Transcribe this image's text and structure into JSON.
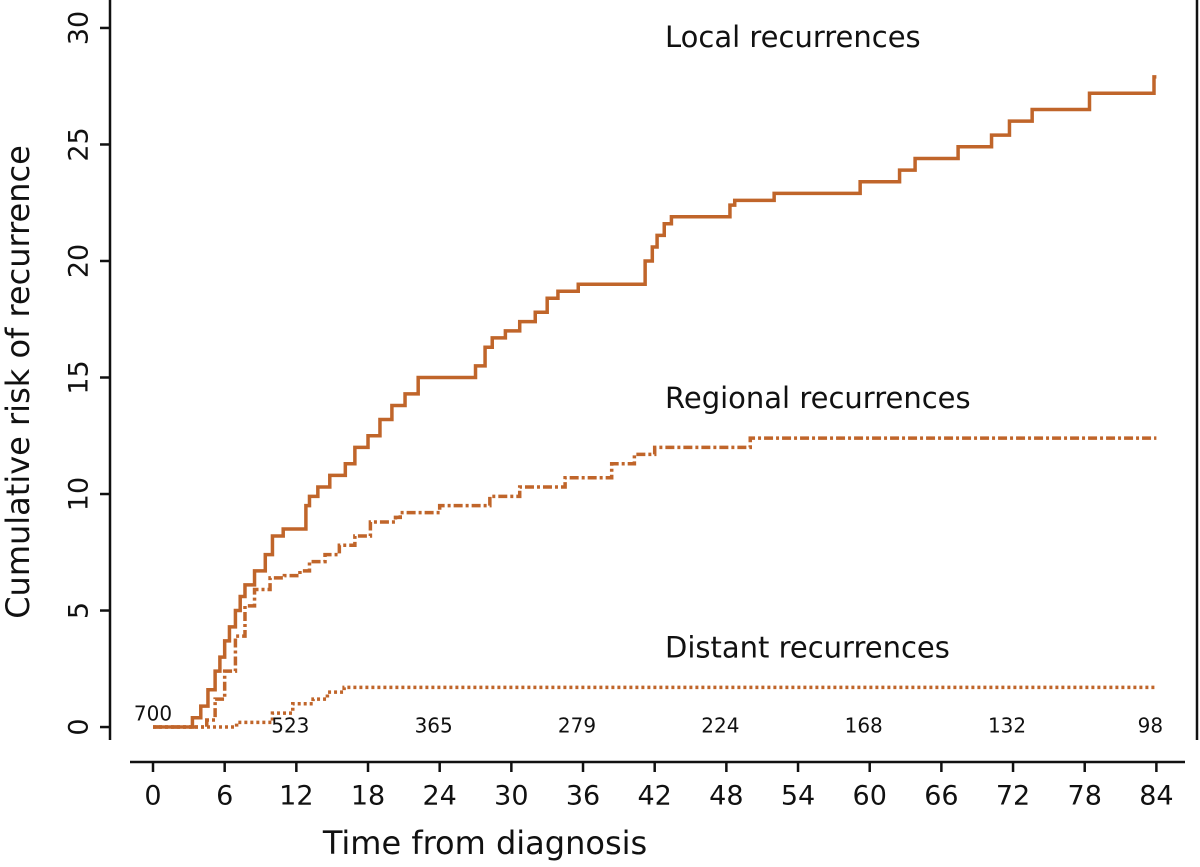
{
  "chart_data": {
    "type": "step",
    "x_label": "Time from diagnosis",
    "y_label": "Cumulative risk of recurrence",
    "xlim": [
      -3.6,
      87.4
    ],
    "ylim": [
      -1.5,
      31.2
    ],
    "xticks": [
      0,
      6,
      12,
      18,
      24,
      30,
      36,
      42,
      48,
      54,
      60,
      66,
      72,
      78,
      84
    ],
    "yticks": [
      0,
      5,
      10,
      15,
      20,
      25,
      30
    ],
    "series": [
      {
        "name": "Local recurrences",
        "color": "#c0652a",
        "line_style": "solid",
        "x": [
          0,
          3.3,
          4.0,
          4.6,
          5.2,
          5.6,
          6.0,
          6.4,
          6.9,
          7.3,
          7.7,
          8.5,
          9.4,
          10.0,
          10.9,
          12.8,
          13.1,
          13.8,
          14.8,
          16.1,
          16.9,
          18.0,
          19.0,
          20.0,
          21.1,
          22.2,
          27.0,
          27.8,
          28.4,
          29.5,
          30.7,
          32.0,
          33.0,
          33.9,
          35.6,
          38.2,
          41.2,
          41.8,
          42.2,
          42.8,
          43.4,
          44.1,
          48.3,
          48.7,
          52.0,
          59.2,
          62.5,
          63.8,
          67.4,
          70.2,
          71.7,
          73.6,
          78.4,
          83.8,
          84
        ],
        "values": [
          0,
          0.4,
          0.9,
          1.6,
          2.4,
          3.0,
          3.7,
          4.3,
          5.0,
          5.6,
          6.1,
          6.7,
          7.4,
          8.2,
          8.5,
          9.5,
          9.9,
          10.3,
          10.8,
          11.3,
          12.0,
          12.5,
          13.2,
          13.8,
          14.3,
          15.0,
          15.5,
          16.3,
          16.7,
          17.0,
          17.4,
          17.8,
          18.4,
          18.7,
          19.0,
          19.0,
          20.0,
          20.6,
          21.1,
          21.6,
          21.9,
          21.9,
          22.4,
          22.6,
          22.9,
          23.4,
          23.9,
          24.4,
          24.9,
          25.4,
          26.0,
          26.5,
          27.2,
          27.9,
          27.9
        ]
      },
      {
        "name": "Regional recurrences",
        "color": "#c0652a",
        "line_style": "dashdot",
        "x": [
          0,
          4.5,
          5.2,
          6.0,
          6.9,
          7.7,
          8.5,
          9.8,
          11.0,
          12.3,
          13.1,
          14.4,
          15.6,
          16.9,
          18.2,
          20.3,
          20.7,
          24.0,
          28.2,
          30.7,
          34.5,
          38.4,
          40.3,
          42.0,
          50.0,
          84
        ],
        "values": [
          0,
          0.3,
          1.2,
          2.4,
          3.9,
          5.2,
          5.9,
          6.4,
          6.5,
          6.7,
          7.1,
          7.4,
          7.8,
          8.2,
          8.8,
          9.0,
          9.2,
          9.5,
          9.9,
          10.3,
          10.7,
          11.3,
          11.7,
          12.0,
          12.4,
          12.4
        ]
      },
      {
        "name": "Distant recurrences",
        "color": "#c0652a",
        "line_style": "dotted",
        "x": [
          0,
          7.0,
          10.0,
          11.7,
          13.4,
          14.6,
          16.0,
          84
        ],
        "values": [
          0,
          0.2,
          0.6,
          1.0,
          1.2,
          1.5,
          1.7,
          1.7
        ]
      }
    ],
    "number_at_risk": {
      "x": [
        0,
        12,
        24,
        36,
        48,
        60,
        72,
        84
      ],
      "values": [
        700,
        523,
        365,
        279,
        224,
        168,
        132,
        98
      ]
    }
  }
}
